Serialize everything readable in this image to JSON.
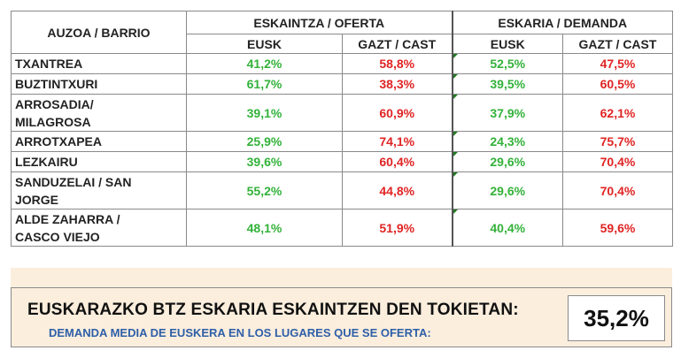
{
  "headers": {
    "barrio": "AUZOA / BARRIO",
    "oferta": "ESKAINTZA / OFERTA",
    "demanda": "ESKARIA / DEMANDA",
    "eusk": "EUSK",
    "cast": "GAZT / CAST"
  },
  "rows": [
    {
      "name": [
        "TXANTREA"
      ],
      "of_eusk": "41,2%",
      "of_cast": "58,8%",
      "de_eusk": "52,5%",
      "de_cast": "47,5%"
    },
    {
      "name": [
        "BUZTINTXURI"
      ],
      "of_eusk": "61,7%",
      "of_cast": "38,3%",
      "de_eusk": "39,5%",
      "de_cast": "60,5%"
    },
    {
      "name": [
        "ARROSADIA/",
        "MILAGROSA"
      ],
      "of_eusk": "39,1%",
      "of_cast": "60,9%",
      "de_eusk": "37,9%",
      "de_cast": "62,1%"
    },
    {
      "name": [
        "ARROTXAPEA"
      ],
      "of_eusk": "25,9%",
      "of_cast": "74,1%",
      "de_eusk": "24,3%",
      "de_cast": "75,7%"
    },
    {
      "name": [
        "LEZKAIRU"
      ],
      "of_eusk": "39,6%",
      "of_cast": "60,4%",
      "de_eusk": "29,6%",
      "de_cast": "70,4%"
    },
    {
      "name": [
        "SANDUZELAI / SAN",
        "JORGE"
      ],
      "of_eusk": "55,2%",
      "of_cast": "44,8%",
      "de_eusk": "29,6%",
      "de_cast": "70,4%"
    },
    {
      "name": [
        "ALDE ZAHARRA /",
        "CASCO VIEJO"
      ],
      "of_eusk": "48,1%",
      "of_cast": "51,9%",
      "de_eusk": "40,4%",
      "de_cast": "59,6%"
    }
  ],
  "summary": {
    "line1": "EUSKARAZKO BTZ ESKARIA ESKAINTZEN DEN TOKIETAN:",
    "line2": "DEMANDA MEDIA DE EUSKERA EN LOS LUGARES QUE SE OFERTA:",
    "value": "35,2%"
  },
  "colors": {
    "eusk": "#33b23a",
    "cast": "#e02424",
    "summary_bg": "#fbeedd",
    "summary_line2": "#2e5fa8"
  }
}
